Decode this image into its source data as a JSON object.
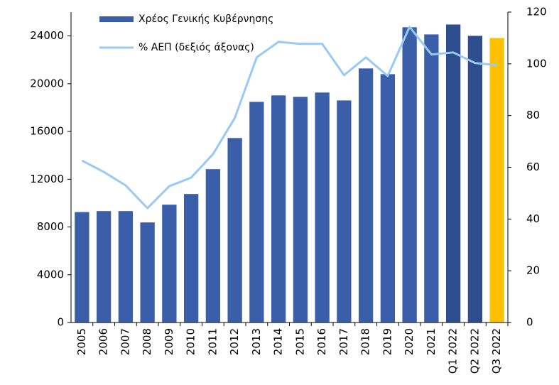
{
  "chart_data": {
    "type": "bar_line",
    "categories": [
      "2005",
      "2006",
      "2007",
      "2008",
      "2009",
      "2010",
      "2011",
      "2012",
      "2013",
      "2014",
      "2015",
      "2016",
      "2017",
      "2018",
      "2019",
      "2020",
      "2021",
      "Q1 2022",
      "Q2 2022",
      "Q3 2022"
    ],
    "series": [
      {
        "name": "Χρέος Γενικής Κυβέρνησης",
        "type": "bar",
        "color": "#3a5ea8",
        "colors": [
          "#3a5ea8",
          "#3a5ea8",
          "#3a5ea8",
          "#3a5ea8",
          "#3a5ea8",
          "#3a5ea8",
          "#3a5ea8",
          "#3a5ea8",
          "#3a5ea8",
          "#3a5ea8",
          "#3a5ea8",
          "#3a5ea8",
          "#3a5ea8",
          "#3a5ea8",
          "#3a5ea8",
          "#3a5ea8",
          "#3a5ea8",
          "#2e4d8c",
          "#2e4d8c",
          "#ffc000"
        ],
        "values": [
          9250,
          9330,
          9330,
          8380,
          9870,
          10760,
          12840,
          15450,
          18480,
          19020,
          18900,
          19260,
          18600,
          21280,
          20800,
          24730,
          24130,
          24960,
          24010,
          23830
        ]
      },
      {
        "name": "% ΑΕΠ (δεξιός άξονας)",
        "type": "line",
        "axis": "y2",
        "color": "#99c9f5",
        "values": [
          62.6,
          58.2,
          53.0,
          44.2,
          52.7,
          56.0,
          65.1,
          79.1,
          102.5,
          108.5,
          107.7,
          107.7,
          95.6,
          102.5,
          95.3,
          114.3,
          103.6,
          104.4,
          100.3,
          99.5
        ]
      }
    ],
    "ylim": [
      0,
      26000
    ],
    "yticks": [
      0,
      4000,
      8000,
      12000,
      16000,
      20000,
      24000
    ],
    "y2lim": [
      0,
      120
    ],
    "y2ticks": [
      0,
      20,
      40,
      60,
      80,
      100,
      120
    ],
    "legend": "top-left",
    "grid": false
  }
}
